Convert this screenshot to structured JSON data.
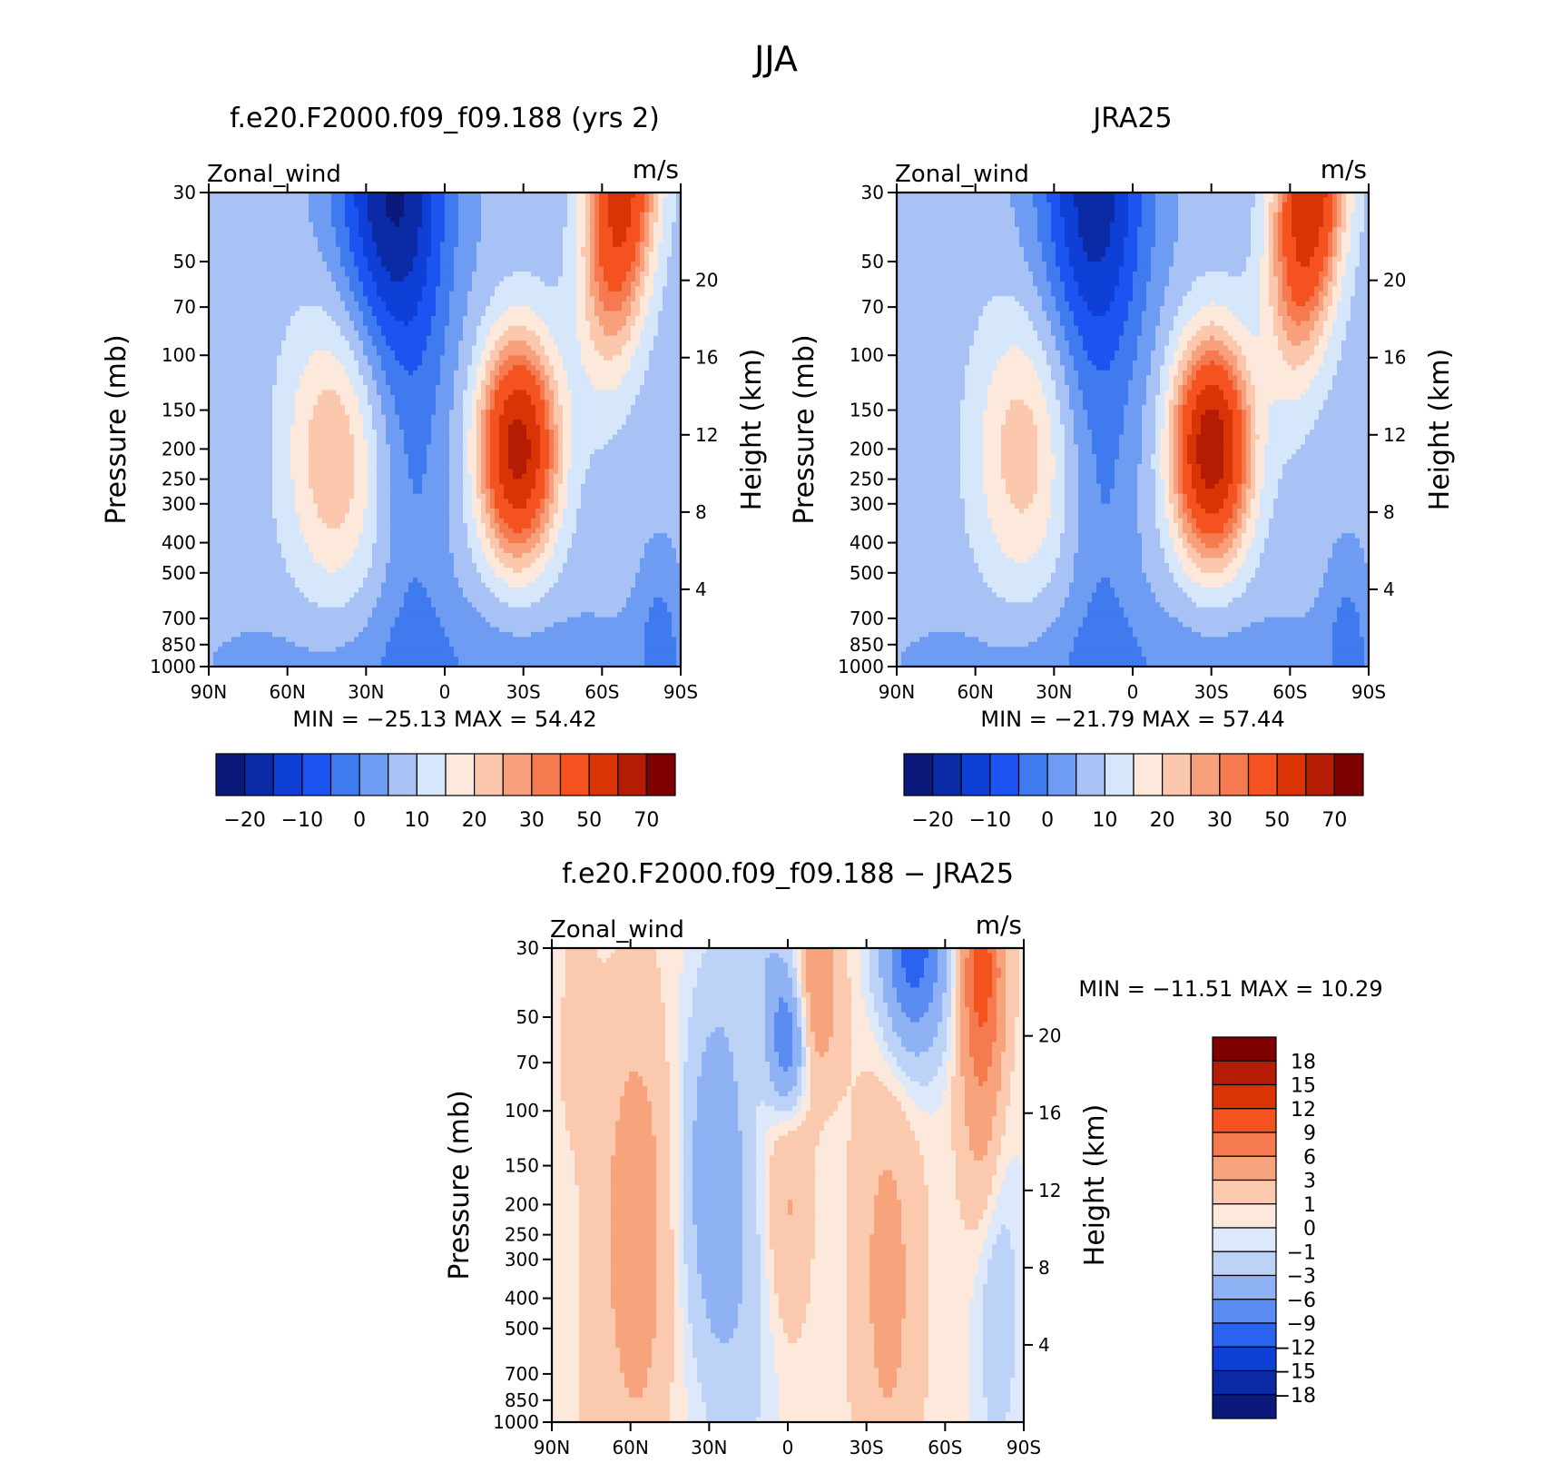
{
  "figure": {
    "title": "JJA",
    "season": "JJA"
  },
  "colors": {
    "abs_palette": [
      "#0b1a7a",
      "#0a2aa6",
      "#0e3fd6",
      "#1b54f0",
      "#3f7aee",
      "#6e9cf3",
      "#a8c2f5",
      "#d6e6fb",
      "#fde9db",
      "#fbc7ad",
      "#f7a07b",
      "#f57a4f",
      "#f4521f",
      "#d93406",
      "#b41c03",
      "#7f0000"
    ],
    "diff_palette": [
      "#0b1a7a",
      "#0a2aa6",
      "#0e3fd6",
      "#2a63f0",
      "#5b8cf1",
      "#8eb2f4",
      "#bcd2f7",
      "#dde9fb",
      "#fde9db",
      "#fbc9ae",
      "#f7a37c",
      "#f57a4f",
      "#f4521f",
      "#d93406",
      "#b41c03",
      "#7f0000"
    ]
  },
  "chart_data": [
    {
      "type": "heatmap",
      "id": "model",
      "title": "f.e20.F2000.f09_f09.188 (yrs 2)",
      "variable": "Zonal_wind",
      "units": "m/s",
      "xlabel": "",
      "ylabel": "Pressure (mb)",
      "ylabel_right": "Height (km)",
      "x_ticks": [
        "90N",
        "60N",
        "30N",
        "0",
        "30S",
        "60S",
        "90S"
      ],
      "y_ticks": [
        "30",
        "50",
        "70",
        "100",
        "150",
        "200",
        "250",
        "300",
        "400",
        "500",
        "700",
        "850",
        "1000"
      ],
      "y_ticks_right": [
        "20",
        "16",
        "12",
        "8",
        "4"
      ],
      "x_range": [
        90,
        -90
      ],
      "y_range": [
        1000,
        30
      ],
      "y_scale": "log",
      "stats": "MIN = −25.13   MAX =  54.42",
      "min": -25.13,
      "max": 54.42,
      "colorbar_labels": [
        "−20",
        "−10",
        "0",
        "10",
        "20",
        "30",
        "50",
        "70"
      ],
      "colorbar_orientation": "horizontal",
      "field": {
        "peaks": [
          {
            "lat": -28,
            "p": 200,
            "value": 54.42,
            "description": "southern hemisphere subtropical jet"
          },
          {
            "lat": -60,
            "p": 30,
            "value": 45,
            "description": "polar night jet"
          },
          {
            "lat": 42,
            "p": 200,
            "value": 20,
            "description": "northern midlatitude jet"
          },
          {
            "lat": 20,
            "p": 30,
            "value": -25.13,
            "description": "stratospheric easterlies"
          }
        ]
      }
    },
    {
      "type": "heatmap",
      "id": "obs",
      "title": "JRA25",
      "variable": "Zonal_wind",
      "units": "m/s",
      "xlabel": "",
      "ylabel": "Pressure (mb)",
      "ylabel_right": "Height (km)",
      "x_ticks": [
        "90N",
        "60N",
        "30N",
        "0",
        "30S",
        "60S",
        "90S"
      ],
      "y_ticks": [
        "30",
        "50",
        "70",
        "100",
        "150",
        "200",
        "250",
        "300",
        "400",
        "500",
        "700",
        "850",
        "1000"
      ],
      "y_ticks_right": [
        "20",
        "16",
        "12",
        "8",
        "4"
      ],
      "x_range": [
        90,
        -90
      ],
      "y_range": [
        1000,
        30
      ],
      "y_scale": "log",
      "stats": "MIN = −21.79   MAX =  57.44",
      "min": -21.79,
      "max": 57.44,
      "colorbar_labels": [
        "−20",
        "−10",
        "0",
        "10",
        "20",
        "30",
        "50",
        "70"
      ],
      "colorbar_orientation": "horizontal",
      "field": {
        "peaks": [
          {
            "lat": -30,
            "p": 200,
            "value": 57.44,
            "description": "southern hemisphere subtropical jet"
          },
          {
            "lat": -60,
            "p": 30,
            "value": 50,
            "description": "polar night jet"
          },
          {
            "lat": 42,
            "p": 200,
            "value": 18,
            "description": "northern midlatitude jet"
          },
          {
            "lat": 15,
            "p": 30,
            "value": -21.79,
            "description": "stratospheric easterlies"
          }
        ]
      }
    },
    {
      "type": "heatmap",
      "id": "diff",
      "title": "f.e20.F2000.f09_f09.188 − JRA25",
      "variable": "Zonal_wind",
      "units": "m/s",
      "xlabel": "",
      "ylabel": "Pressure (mb)",
      "ylabel_right": "Height (km)",
      "x_ticks": [
        "90N",
        "60N",
        "30N",
        "0",
        "30S",
        "60S",
        "90S"
      ],
      "y_ticks": [
        "30",
        "50",
        "70",
        "100",
        "150",
        "200",
        "250",
        "300",
        "400",
        "500",
        "700",
        "850",
        "1000"
      ],
      "y_ticks_right": [
        "20",
        "16",
        "12",
        "8",
        "4"
      ],
      "x_range": [
        90,
        -90
      ],
      "y_range": [
        1000,
        30
      ],
      "y_scale": "log",
      "stats": "MIN = −11.51   MAX =  10.29",
      "min": -11.51,
      "max": 10.29,
      "colorbar_labels": [
        "18",
        "15",
        "12",
        "9",
        "6",
        "3",
        "1",
        "0",
        "−1",
        "−3",
        "−6",
        "−9",
        "−12",
        "−15",
        "−18"
      ],
      "colorbar_orientation": "vertical",
      "field": {
        "peaks": [
          {
            "lat": 60,
            "p": 200,
            "value": 4,
            "description": "positive band near 60N"
          },
          {
            "lat": -75,
            "p": 30,
            "value": 10.29,
            "description": "positive near south pole aloft"
          },
          {
            "lat": -50,
            "p": 30,
            "value": -11.51,
            "description": "negative near 50S aloft"
          },
          {
            "lat": 0,
            "p": 60,
            "value": -8,
            "description": "negative equatorial stratosphere"
          }
        ]
      }
    }
  ]
}
